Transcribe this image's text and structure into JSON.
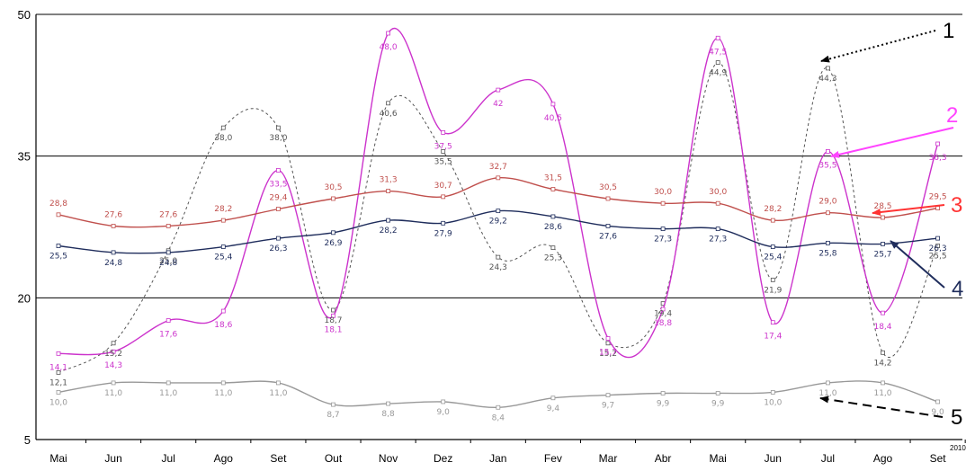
{
  "chart_data": {
    "type": "line",
    "title": "",
    "xlabel": "",
    "ylabel": "",
    "categories": [
      "Mai",
      "Jun",
      "Jul",
      "Ago",
      "Set",
      "Out",
      "Nov",
      "Dez",
      "Jan",
      "Fev",
      "Mar",
      "Abr",
      "Mai",
      "Jun",
      "Jul",
      "Ago",
      "Set"
    ],
    "year_annotation": "2010",
    "ylim": [
      5,
      50
    ],
    "yticks": [
      5,
      20,
      35,
      50
    ],
    "grid": "horizontal",
    "series": [
      {
        "callout": "1",
        "color": "#555555",
        "style": "dashed",
        "values": [
          12.1,
          15.2,
          25.0,
          38.0,
          38.0,
          18.7,
          40.6,
          35.5,
          24.3,
          25.3,
          15.2,
          19.4,
          44.9,
          21.9,
          44.3,
          14.2,
          25.5
        ],
        "labels": [
          "12,1",
          "15,2",
          "25,0",
          "38,0",
          "38,0",
          "18,7",
          "40,6",
          "35,5",
          "24,3",
          "25,3",
          "15,2",
          "19,4",
          "44,9",
          "21,9",
          "44,3",
          "14,2",
          "25,5"
        ]
      },
      {
        "callout": "2",
        "color": "#cc33cc",
        "style": "solid",
        "values": [
          14.1,
          14.3,
          17.6,
          18.6,
          33.5,
          18.1,
          48.0,
          37.5,
          42.0,
          40.5,
          15.7,
          18.8,
          47.5,
          17.4,
          35.5,
          18.4,
          36.3
        ],
        "labels": [
          "14,1",
          "14,3",
          "17,6",
          "18,6",
          "33,5",
          "18,1",
          "48,0",
          "37,5",
          "42",
          "40,5",
          "15,7",
          "18,8",
          "47,5",
          "17,4",
          "35,5",
          "18,4",
          "36,3"
        ]
      },
      {
        "callout": "3",
        "color": "#c0504d",
        "style": "solid",
        "values": [
          28.8,
          27.6,
          27.6,
          28.2,
          29.4,
          30.5,
          31.3,
          30.7,
          32.7,
          31.5,
          30.5,
          30.0,
          30.0,
          28.2,
          29.0,
          28.5,
          29.5
        ],
        "labels": [
          "28,8",
          "27,6",
          "27,6",
          "28,2",
          "29,4",
          "30,5",
          "31,3",
          "30,7",
          "32,7",
          "31,5",
          "30,5",
          "30,0",
          "30,0",
          "28,2",
          "29,0",
          "28,5",
          "29,5"
        ]
      },
      {
        "callout": "4",
        "color": "#1f2d5c",
        "style": "solid",
        "values": [
          25.5,
          24.8,
          24.8,
          25.4,
          26.3,
          26.9,
          28.2,
          27.9,
          29.2,
          28.6,
          27.6,
          27.3,
          27.3,
          25.4,
          25.8,
          25.7,
          26.3
        ],
        "labels": [
          "25,5",
          "24,8",
          "24,8",
          "25,4",
          "26,3",
          "26,9",
          "28,2",
          "27,9",
          "29,2",
          "28,6",
          "27,6",
          "27,3",
          "27,3",
          "25,4",
          "25,8",
          "25,7",
          "26,3"
        ]
      },
      {
        "callout": "5",
        "color": "#999999",
        "style": "solid",
        "values": [
          10.0,
          11.0,
          11.0,
          11.0,
          11.0,
          8.7,
          8.8,
          9.0,
          8.4,
          9.4,
          9.7,
          9.9,
          9.9,
          10.0,
          11.0,
          11.0,
          9.0
        ],
        "labels": [
          "10,0",
          "11,0",
          "11,0",
          "11,0",
          "11,0",
          "8,7",
          "8,8",
          "9,0",
          "8,4",
          "9,4",
          "9,7",
          "9,9",
          "9,9",
          "10,0",
          "11,0",
          "11,0",
          "9,0"
        ]
      }
    ],
    "callouts": [
      {
        "label": "1",
        "color": "#000000",
        "arrow_color": "#000000",
        "arrow_style": "dotted"
      },
      {
        "label": "2",
        "color": "#ff44ff",
        "arrow_color": "#ff44ff",
        "arrow_style": "solid"
      },
      {
        "label": "3",
        "color": "#ff3333",
        "arrow_color": "#ff3333",
        "arrow_style": "solid"
      },
      {
        "label": "4",
        "color": "#1f2d5c",
        "arrow_color": "#1f2d5c",
        "arrow_style": "solid"
      },
      {
        "label": "5",
        "color": "#000000",
        "arrow_color": "#000000",
        "arrow_style": "dashed"
      }
    ]
  }
}
